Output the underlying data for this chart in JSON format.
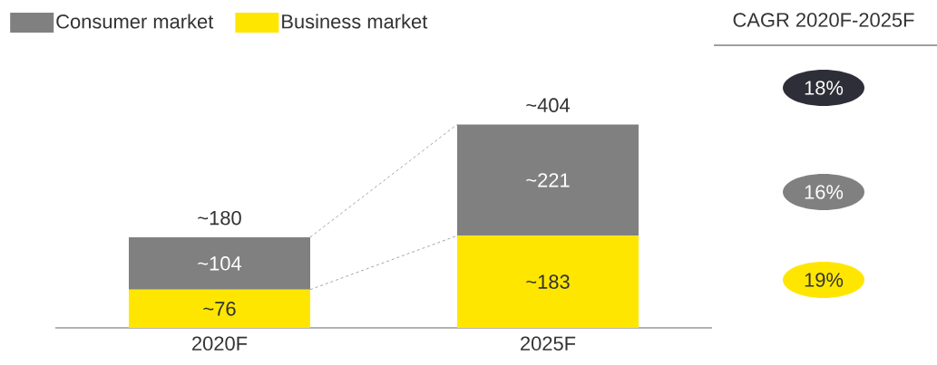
{
  "chart_data": {
    "type": "bar",
    "stacked": true,
    "categories": [
      "2020F",
      "2025F"
    ],
    "series": [
      {
        "name": "Business market",
        "color": "#ffe600",
        "values": [
          76,
          183
        ],
        "value_labels": [
          "~76",
          "~183"
        ]
      },
      {
        "name": "Consumer market",
        "color": "#808080",
        "values": [
          104,
          221
        ],
        "value_labels": [
          "~104",
          "~221"
        ]
      }
    ],
    "totals": [
      "~180",
      "~404"
    ],
    "legend": "top left",
    "annotations": [
      "CAGR 2020F-2025F",
      "18%",
      "16%",
      "19%"
    ]
  }
}
